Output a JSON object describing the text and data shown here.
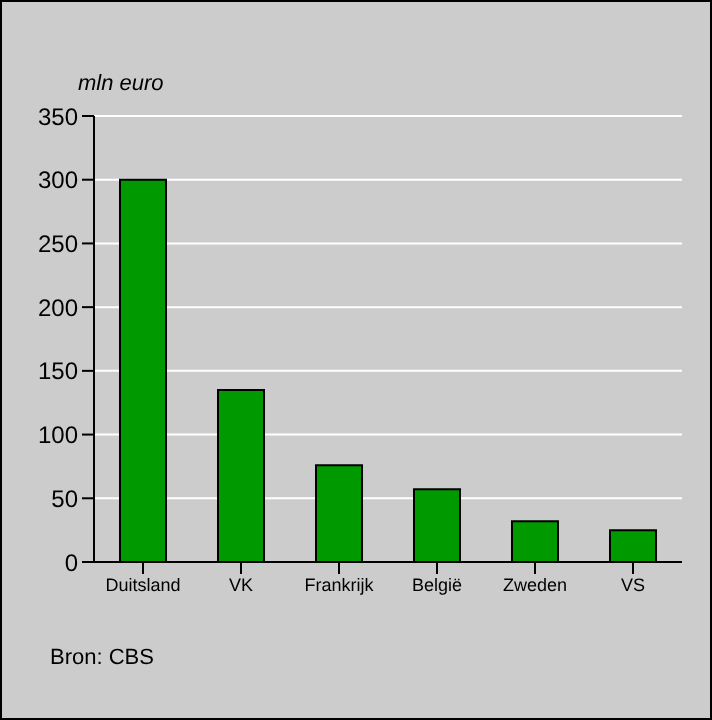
{
  "chart_data": {
    "type": "bar",
    "ylabel": "mln euro",
    "categories": [
      "Duitsland",
      "VK",
      "Frankrijk",
      "België",
      "Zweden",
      "VS"
    ],
    "values": [
      300,
      135,
      76,
      57,
      32,
      25
    ],
    "color": "#009900",
    "ylim": [
      0,
      350
    ],
    "yticks": [
      0,
      50,
      100,
      150,
      200,
      250,
      300,
      350
    ],
    "grid": "y",
    "annotations": [
      "Bron: CBS"
    ]
  }
}
